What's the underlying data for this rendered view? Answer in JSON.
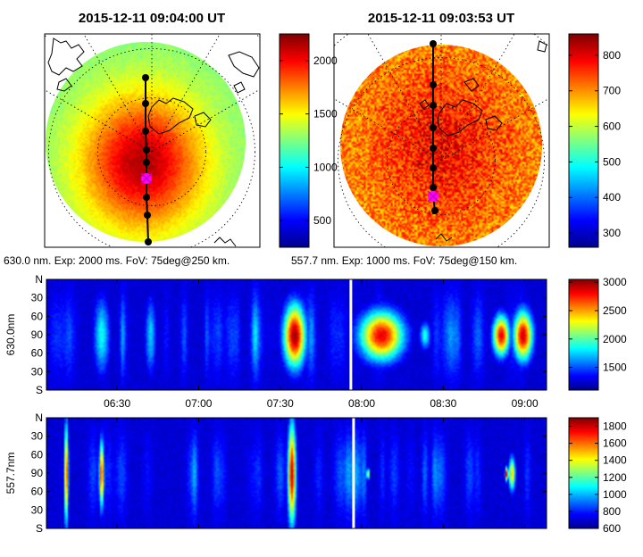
{
  "colors": {
    "colormap": [
      "#00008f",
      "#0000ff",
      "#0080ff",
      "#00ffff",
      "#80ff80",
      "#ffff00",
      "#ff8000",
      "#ff0000",
      "#800000"
    ],
    "track": "#000000",
    "cross": "#ff00ff",
    "coast": "#000000",
    "gap": "#ffffff"
  },
  "chart_data": [
    {
      "type": "heatmap",
      "name": "allsky-630",
      "title": "2015-12-11 09:04:00 UT",
      "caption": "630.0 nm. Exp: 2000 ms. FoV: 75deg@250 km.",
      "colorbar": {
        "min": 250,
        "max": 2250,
        "ticks": [
          500,
          1000,
          1500,
          2000
        ]
      },
      "peak_value": 2150,
      "edge_value": 1250,
      "track_points": 9,
      "cross_marker_index": 5
    },
    {
      "type": "heatmap",
      "name": "allsky-5577",
      "title": "2015-12-11 09:03:53 UT",
      "caption": "557.7 nm. Exp: 1000 ms. FoV: 75deg@150 km.",
      "colorbar": {
        "min": 260,
        "max": 860,
        "ticks": [
          300,
          400,
          500,
          600,
          700,
          800
        ]
      },
      "peak_value": 790,
      "edge_value": 700,
      "track_points": 9,
      "cross_marker_index": 7
    },
    {
      "type": "heatmap",
      "name": "keogram-630",
      "ylabel": "630.0nm",
      "y_ticks": [
        "N",
        "30",
        "60",
        "90",
        "60",
        "30",
        "S"
      ],
      "x_range": [
        "06:04",
        "09:08"
      ],
      "x_ticks": [
        "06:30",
        "07:00",
        "07:30",
        "08:00",
        "08:30",
        "09:00"
      ],
      "colorbar": {
        "min": 1100,
        "max": 3050,
        "ticks": [
          1500,
          2000,
          2500,
          3000
        ]
      },
      "gap_time": "07:56",
      "events": [
        {
          "time": "07:35",
          "width_min": 4,
          "peak": 3000,
          "spread": 0.28
        },
        {
          "time": "08:07",
          "width_min": 8,
          "peak": 2850,
          "spread": 0.22
        },
        {
          "time": "08:51",
          "width_min": 3,
          "peak": 2850,
          "spread": 0.18
        },
        {
          "time": "08:59",
          "width_min": 3.5,
          "peak": 2900,
          "spread": 0.22
        },
        {
          "time": "06:24",
          "width_min": 3,
          "peak": 1850,
          "spread": 0.35
        },
        {
          "time": "06:42",
          "width_min": 2,
          "peak": 1750,
          "spread": 0.35
        },
        {
          "time": "08:23",
          "width_min": 2,
          "peak": 1900,
          "spread": 0.12
        }
      ]
    },
    {
      "type": "heatmap",
      "name": "keogram-5577",
      "ylabel": "557.7nm",
      "y_ticks": [
        "N",
        "30",
        "60",
        "90",
        "60",
        "30",
        "S"
      ],
      "x_range": [
        "06:04",
        "09:08"
      ],
      "x_ticks": [
        "06:30",
        "07:00",
        "07:30",
        "08:00",
        "08:30",
        "09:00"
      ],
      "colorbar": {
        "min": 600,
        "max": 1900,
        "ticks": [
          600,
          800,
          1000,
          1200,
          1400,
          1600,
          1800
        ]
      },
      "gap_time": "07:57",
      "events": [
        {
          "time": "07:34",
          "width_min": 1.5,
          "peak": 1800,
          "spread": 0.45
        },
        {
          "time": "06:11",
          "width_min": 0.8,
          "peak": 1650,
          "spread": 0.45
        },
        {
          "time": "06:24",
          "width_min": 0.9,
          "peak": 1700,
          "spread": 0.3
        },
        {
          "time": "08:53",
          "width_min": 0.6,
          "peak": 1850,
          "spread": 0.06
        },
        {
          "time": "08:55",
          "width_min": 1.2,
          "peak": 1500,
          "spread": 0.15
        },
        {
          "time": "08:02",
          "width_min": 0.5,
          "peak": 1550,
          "spread": 0.05
        }
      ]
    }
  ]
}
